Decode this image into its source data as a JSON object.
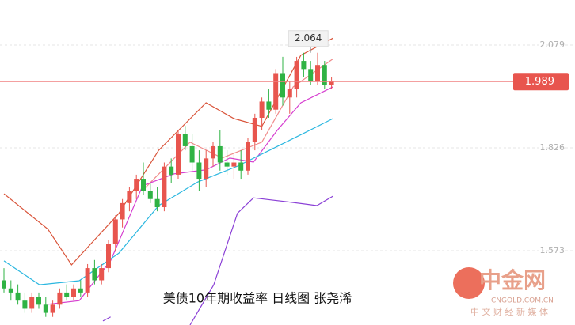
{
  "chart_data": {
    "type": "candlestick",
    "title": "美债10年期收益率  日线图 张尧浠",
    "watermark": {
      "logo": "中金网",
      "site": "CNGOLD.COM.CN",
      "slogan": "中 文 财 经 新 媒 体"
    },
    "ylim": [
      1.39,
      2.19
    ],
    "yticks": [
      1.573,
      1.826,
      2.079
    ],
    "grid": true,
    "up_color": "#e8554e",
    "down_color": "#2fb344",
    "last_price": 1.989,
    "high_label": 2.064,
    "candles": {
      "open": [
        1.5,
        1.48,
        1.47,
        1.45,
        1.43,
        1.46,
        1.44,
        1.42,
        1.44,
        1.47,
        1.46,
        1.48,
        1.47,
        1.53,
        1.5,
        1.53,
        1.59,
        1.65,
        1.69,
        1.72,
        1.75,
        1.72,
        1.7,
        1.68,
        1.78,
        1.76,
        1.86,
        1.83,
        1.79,
        1.75,
        1.8,
        1.83,
        1.79,
        1.78,
        1.79,
        1.77,
        1.84,
        1.9,
        1.94,
        1.92,
        2.01,
        1.95,
        1.97,
        2.04,
        2.02,
        1.99,
        2.03,
        1.98
      ],
      "high": [
        1.53,
        1.5,
        1.49,
        1.47,
        1.47,
        1.47,
        1.46,
        1.45,
        1.48,
        1.49,
        1.49,
        1.5,
        1.54,
        1.55,
        1.54,
        1.6,
        1.66,
        1.7,
        1.73,
        1.76,
        1.79,
        1.74,
        1.73,
        1.79,
        1.8,
        1.87,
        1.88,
        1.86,
        1.82,
        1.82,
        1.84,
        1.87,
        1.82,
        1.81,
        1.82,
        1.85,
        1.91,
        1.95,
        1.97,
        2.02,
        2.05,
        1.99,
        2.05,
        2.06,
        2.04,
        2.06,
        2.04,
        2.0
      ],
      "low": [
        1.47,
        1.45,
        1.44,
        1.42,
        1.42,
        1.43,
        1.41,
        1.41,
        1.43,
        1.45,
        1.45,
        1.46,
        1.46,
        1.49,
        1.49,
        1.52,
        1.57,
        1.63,
        1.67,
        1.7,
        1.71,
        1.69,
        1.67,
        1.67,
        1.74,
        1.75,
        1.82,
        1.77,
        1.72,
        1.73,
        1.78,
        1.77,
        1.76,
        1.75,
        1.75,
        1.76,
        1.82,
        1.87,
        1.9,
        1.91,
        1.93,
        1.91,
        1.95,
        2.0,
        1.98,
        1.98,
        1.97,
        1.97
      ],
      "close": [
        1.48,
        1.47,
        1.45,
        1.43,
        1.46,
        1.44,
        1.42,
        1.44,
        1.47,
        1.46,
        1.48,
        1.47,
        1.53,
        1.5,
        1.53,
        1.59,
        1.65,
        1.69,
        1.72,
        1.75,
        1.72,
        1.7,
        1.68,
        1.78,
        1.76,
        1.86,
        1.83,
        1.79,
        1.75,
        1.8,
        1.83,
        1.79,
        1.78,
        1.79,
        1.77,
        1.84,
        1.9,
        1.94,
        1.92,
        2.01,
        1.95,
        1.97,
        2.04,
        2.02,
        1.99,
        2.03,
        1.98,
        1.99
      ]
    },
    "lines": [
      {
        "color": "#d9543a",
        "x": [
          0,
          6.3,
          9.7,
          16.5,
          22.2,
          29,
          33,
          37,
          42.6,
          47.2
        ],
        "values": [
          1.713,
          1.626,
          1.538,
          1.665,
          1.82,
          1.937,
          1.898,
          1.879,
          2.054,
          2.096
        ]
      },
      {
        "color": "#f08a8a",
        "x": [
          20,
          26.7,
          31.3,
          37,
          41.5,
          47.2
        ],
        "values": [
          1.723,
          1.84,
          1.801,
          1.84,
          1.976,
          2.045
        ]
      },
      {
        "color": "#d63fd0",
        "x": [
          6.3,
          10.8,
          15.3,
          19.9,
          24.4,
          29,
          32.4,
          35.8,
          39.2,
          42.6,
          47.2
        ],
        "values": [
          1.441,
          1.45,
          1.548,
          1.733,
          1.762,
          1.772,
          1.801,
          1.791,
          1.869,
          1.937,
          1.976
        ]
      },
      {
        "color": "#2bb7e0",
        "x": [
          0,
          5.1,
          10.8,
          16.5,
          22.2,
          27.8,
          33.5,
          38.1,
          41.5,
          47.2
        ],
        "values": [
          1.548,
          1.489,
          1.499,
          1.567,
          1.684,
          1.742,
          1.781,
          1.82,
          1.849,
          1.898
        ]
      },
      {
        "color": "#8a3fd6",
        "x": [
          14.2,
          15.3
        ],
        "values": [
          1.4,
          1.41
        ]
      },
      {
        "color": "#8a3fd6",
        "x": [
          26.7,
          30.1,
          33.5,
          35.8,
          40.3,
          44.9,
          47.2
        ],
        "values": [
          1.39,
          1.489,
          1.665,
          1.703,
          1.694,
          1.684,
          1.707
        ]
      }
    ]
  }
}
